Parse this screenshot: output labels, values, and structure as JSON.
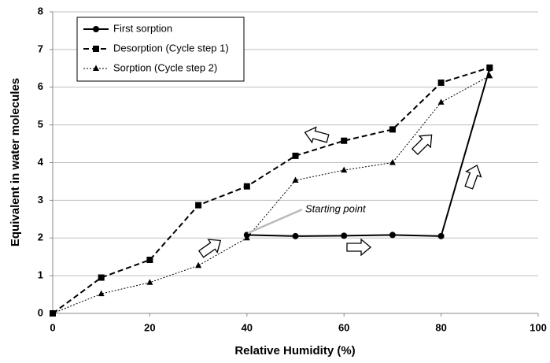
{
  "chart_data": {
    "type": "line",
    "x_label": "Relative Humidity (%)",
    "y_label": "Equivalent in water molecules",
    "x": [
      0,
      10,
      20,
      30,
      40,
      50,
      60,
      70,
      80,
      90
    ],
    "series": [
      {
        "name": "First sorption",
        "color": "#000000",
        "marker": "circle",
        "dash": "solid",
        "values": [
          null,
          null,
          null,
          null,
          2.08,
          2.05,
          2.06,
          2.08,
          2.05,
          6.5
        ]
      },
      {
        "name": "Desorption (Cycle step 1)",
        "color": "#000000",
        "marker": "square",
        "dash": "dashed",
        "values": [
          0,
          0.95,
          1.42,
          2.87,
          3.37,
          4.18,
          4.58,
          4.88,
          6.12,
          6.52
        ]
      },
      {
        "name": "Sorption (Cycle step 2)",
        "color": "#000000",
        "marker": "triangle",
        "dash": "dotted",
        "values": [
          0,
          0.52,
          0.82,
          1.27,
          2.0,
          3.53,
          3.8,
          4.0,
          5.6,
          6.3
        ]
      }
    ],
    "annotation": "Starting point",
    "xlim": [
      0,
      100
    ],
    "xticks": [
      0,
      20,
      40,
      60,
      80,
      100
    ],
    "ylim": [
      0,
      8
    ],
    "yticks": [
      0,
      1,
      2,
      3,
      4,
      5,
      6,
      7,
      8
    ],
    "grid": true,
    "legend": "upper left"
  }
}
